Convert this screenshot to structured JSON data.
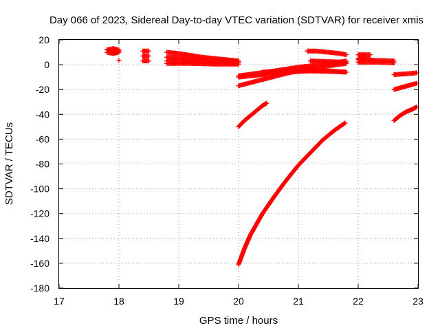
{
  "chart_data": {
    "type": "scatter",
    "title": "Day 066 of 2023, Sidereal Day-to-day VTEC variation (SDTVAR) for receiver xmis",
    "xlabel": "GPS time / hours",
    "ylabel": "SDTVAR / TECUs",
    "xlim": [
      17,
      23
    ],
    "ylim": [
      -180,
      20
    ],
    "xticks": [
      17,
      18,
      19,
      20,
      21,
      22,
      23
    ],
    "yticks": [
      -180,
      -160,
      -140,
      -120,
      -100,
      -80,
      -60,
      -40,
      -20,
      0,
      20
    ],
    "grid": true,
    "marker": "plus",
    "color": "#ff0000",
    "series": [
      {
        "x": [
          17.8,
          17.9,
          18.0
        ],
        "y": [
          12,
          13,
          12
        ]
      },
      {
        "x": [
          17.8,
          17.9,
          18.0
        ],
        "y": [
          10,
          9,
          10
        ]
      },
      {
        "x": [
          17.8,
          17.9,
          18.0
        ],
        "y": [
          12,
          11,
          11
        ]
      },
      {
        "x": [
          18.0
        ],
        "y": [
          3.5
        ]
      },
      {
        "x": [
          18.4,
          18.5
        ],
        "y": [
          11,
          11
        ]
      },
      {
        "x": [
          18.4,
          18.5
        ],
        "y": [
          7,
          7
        ]
      },
      {
        "x": [
          18.4,
          18.5
        ],
        "y": [
          3,
          3
        ]
      },
      {
        "x": [
          18.8,
          19.0,
          19.2,
          19.4,
          19.6,
          19.8,
          20.0
        ],
        "y": [
          10,
          9,
          7.5,
          6,
          5,
          4,
          3
        ]
      },
      {
        "x": [
          18.8,
          19.0,
          19.3,
          19.6,
          20.0
        ],
        "y": [
          6,
          5.5,
          5,
          4,
          3
        ]
      },
      {
        "x": [
          18.8,
          19.2,
          19.6,
          20.0
        ],
        "y": [
          3,
          3,
          2,
          2
        ]
      },
      {
        "x": [
          18.8,
          19.2,
          19.6,
          20.0
        ],
        "y": [
          1,
          1,
          0.5,
          0.5
        ]
      },
      {
        "x": [
          20.0,
          20.3,
          20.6,
          21.0,
          21.4,
          21.8
        ],
        "y": [
          -9,
          -7,
          -5,
          -2,
          0,
          3
        ]
      },
      {
        "x": [
          20.0,
          20.4,
          20.8,
          21.2,
          21.5,
          21.8
        ],
        "y": [
          -17,
          -12,
          -7,
          -3,
          -1,
          1
        ]
      },
      {
        "x": [
          20.0,
          20.4,
          20.8,
          21.2,
          21.5,
          21.8
        ],
        "y": [
          -10,
          -8,
          -6,
          -5,
          -5,
          -6
        ]
      },
      {
        "x": [
          20.4,
          20.8,
          21.2,
          21.6,
          21.8
        ],
        "y": [
          -6,
          -5,
          -5,
          -5.5,
          -6
        ]
      },
      {
        "x": [
          20.0,
          20.1,
          20.2,
          20.3,
          20.4,
          20.47
        ],
        "y": [
          -50,
          -45,
          -41,
          -37,
          -33,
          -31
        ]
      },
      {
        "x": [
          20.0,
          20.1,
          20.2,
          20.4,
          20.6,
          20.8,
          21.0,
          21.2,
          21.4,
          21.6,
          21.78
        ],
        "y": [
          -161,
          -148,
          -137,
          -120,
          -106,
          -93,
          -81,
          -71,
          -61,
          -53,
          -47
        ]
      },
      {
        "x": [
          21.15,
          21.3,
          21.5,
          21.7,
          21.8
        ],
        "y": [
          11,
          11,
          10,
          9,
          8
        ]
      },
      {
        "x": [
          21.2,
          21.5,
          21.8
        ],
        "y": [
          3,
          2.5,
          2
        ]
      },
      {
        "x": [
          22.0,
          22.1,
          22.2
        ],
        "y": [
          8,
          8,
          8
        ]
      },
      {
        "x": [
          22.0,
          22.1,
          22.2
        ],
        "y": [
          5,
          5,
          5
        ]
      },
      {
        "x": [
          22.0,
          22.3,
          22.6
        ],
        "y": [
          2,
          2,
          1.5
        ]
      },
      {
        "x": [
          22.0,
          22.3,
          22.6
        ],
        "y": [
          4,
          3.5,
          3
        ]
      },
      {
        "x": [
          22.6,
          22.75,
          22.9,
          22.98
        ],
        "y": [
          -8,
          -7.5,
          -7,
          -6.5
        ]
      },
      {
        "x": [
          22.6,
          22.75,
          22.9,
          22.98
        ],
        "y": [
          -20,
          -18,
          -16,
          -15
        ]
      },
      {
        "x": [
          22.6,
          22.7,
          22.8,
          22.9,
          22.98
        ],
        "y": [
          -45,
          -41,
          -38,
          -36,
          -34
        ]
      }
    ]
  }
}
